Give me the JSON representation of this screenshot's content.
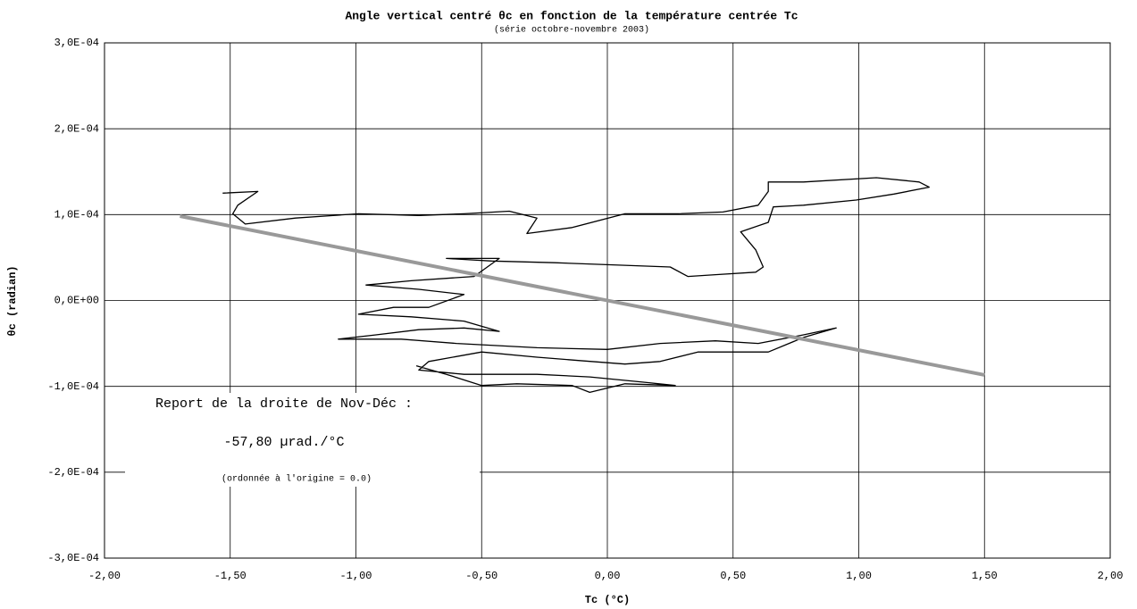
{
  "chart_data": {
    "type": "line",
    "title": "Angle vertical centré θc en fonction de la température centrée Tc",
    "subtitle": "(série octobre-novembre 2003)",
    "x_label": "Tc (°C)",
    "y_label": "θc (radian)",
    "annotations": [
      "Report de la droite de Nov-Déc :",
      "-57,80 µrad./°C",
      "(ordonnée à l'origine = 0.0)"
    ],
    "xlim": [
      -2,
      2
    ],
    "xticks": [
      {
        "value": -2,
        "label": "-2,00"
      },
      {
        "value": -1.5,
        "label": "-1,50"
      },
      {
        "value": -1,
        "label": "-1,00"
      },
      {
        "value": -0.5,
        "label": "-0,50"
      },
      {
        "value": 0,
        "label": "0,00"
      },
      {
        "value": 0.5,
        "label": "0,50"
      },
      {
        "value": 1,
        "label": "1,00"
      },
      {
        "value": 1.5,
        "label": "1,50"
      },
      {
        "value": 2,
        "label": "2,00"
      }
    ],
    "ylim": [
      -0.0003,
      0.0003
    ],
    "yticks": [
      {
        "value": -0.0003,
        "label": "-3,0E-04"
      },
      {
        "value": -0.0002,
        "label": "-2,0E-04"
      },
      {
        "value": -0.0001,
        "label": "-1,0E-04"
      },
      {
        "value": 0,
        "label": "0,0E+00"
      },
      {
        "value": 0.0001,
        "label": "1,0E-04"
      },
      {
        "value": 0.0002,
        "label": "2,0E-04"
      },
      {
        "value": 0.0003,
        "label": "3,0E-04"
      }
    ],
    "grid": true,
    "series": [
      {
        "color": "#000000",
        "width": 1.3,
        "x": [
          -1.53,
          -1.39,
          -1.47,
          -1.49,
          -1.44,
          -1.24,
          -0.99,
          -0.75,
          -0.57,
          -0.39,
          -0.28,
          -0.32,
          -0.14,
          0.07,
          0.28,
          0.46,
          0.6,
          0.64,
          0.64,
          0.78,
          1.07,
          1.24,
          1.28,
          1.14,
          0.99,
          0.78,
          0.66,
          0.64,
          0.53,
          0.59,
          0.62,
          0.59,
          0.43,
          0.32,
          0.25,
          0.07,
          -0.21,
          -0.46,
          -0.64,
          -0.43,
          -0.53,
          -0.78,
          -0.96,
          -0.75,
          -0.57,
          -0.71,
          -0.85,
          -0.99,
          -0.78,
          -0.57,
          -0.43,
          -0.57,
          -0.75,
          -0.92,
          -1.07,
          -0.82,
          -0.6,
          -0.28,
          0.0,
          0.21,
          0.43,
          0.6,
          0.78,
          0.91,
          0.78,
          0.64,
          0.36,
          0.21,
          0.07,
          -0.11,
          -0.28,
          -0.5,
          -0.71,
          -0.75,
          -0.57,
          -0.28,
          -0.07,
          0.14,
          0.27,
          0.07,
          -0.07,
          -0.14,
          -0.36,
          -0.5,
          -0.64,
          -0.76
        ],
        "values": [
          0.000125,
          0.000127,
          0.000111,
          0.000101,
          8.9e-05,
          9.6e-05,
          0.000101,
          9.9e-05,
          0.000101,
          0.000104,
          9.6e-05,
          7.8e-05,
          8.5e-05,
          0.000101,
          0.000101,
          0.000103,
          0.000111,
          0.000127,
          0.000138,
          0.000138,
          0.000143,
          0.000138,
          0.000132,
          0.000124,
          0.000117,
          0.000111,
          0.000109,
          9.1e-05,
          8e-05,
          5.9e-05,
          3.9e-05,
          3.3e-05,
          3e-05,
          2.8e-05,
          3.9e-05,
          4.1e-05,
          4.4e-05,
          4.6e-05,
          4.9e-05,
          4.9e-05,
          2.8e-05,
          2.3e-05,
          1.8e-05,
          1.3e-05,
          7e-06,
          -8e-06,
          -8e-06,
          -1.6e-05,
          -1.9e-05,
          -2.4e-05,
          -3.6e-05,
          -3.2e-05,
          -3.4e-05,
          -4e-05,
          -4.5e-05,
          -4.5e-05,
          -5e-05,
          -5.5e-05,
          -5.7e-05,
          -5e-05,
          -4.7e-05,
          -5e-05,
          -4e-05,
          -3.2e-05,
          -4.3e-05,
          -6e-05,
          -6e-05,
          -7.1e-05,
          -7.4e-05,
          -7e-05,
          -6.6e-05,
          -6e-05,
          -7.1e-05,
          -8.1e-05,
          -8.6e-05,
          -8.6e-05,
          -8.9e-05,
          -9.5e-05,
          -9.9e-05,
          -9.7e-05,
          -0.000107,
          -9.9e-05,
          -9.7e-05,
          -9.9e-05,
          -8.6e-05,
          -7.6e-05
        ]
      },
      {
        "color": "#999999",
        "width": 4,
        "x": [
          -1.7,
          1.5
        ],
        "values": [
          9.83e-05,
          -8.67e-05
        ]
      }
    ]
  }
}
